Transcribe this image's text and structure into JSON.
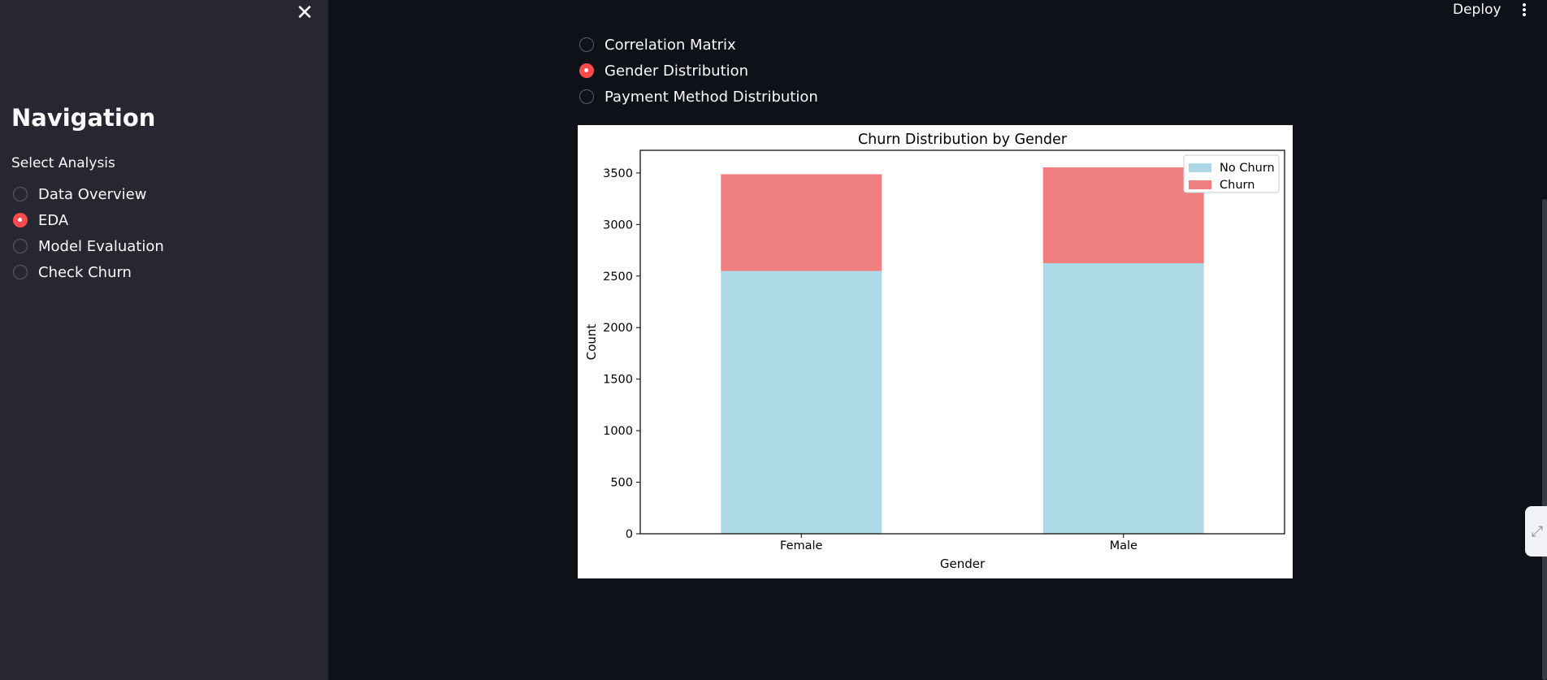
{
  "sidebar": {
    "close_icon": "close-icon",
    "title": "Navigation",
    "select_label": "Select Analysis",
    "options": [
      {
        "label": "Data Overview",
        "checked": false
      },
      {
        "label": "EDA",
        "checked": true
      },
      {
        "label": "Model Evaluation",
        "checked": false
      },
      {
        "label": "Check Churn",
        "checked": false
      }
    ]
  },
  "header": {
    "deploy_label": "Deploy",
    "menu_icon": "kebab-menu-icon"
  },
  "main": {
    "options": [
      {
        "label": "Correlation Matrix",
        "checked": false
      },
      {
        "label": "Gender Distribution",
        "checked": true
      },
      {
        "label": "Payment Method Distribution",
        "checked": false
      }
    ]
  },
  "colors": {
    "app_bg": "#0e1117",
    "sidebar_bg": "#262730",
    "accent": "#ff4b4b",
    "no_churn": "#add8e6",
    "churn": "#f08080"
  },
  "chart_data": {
    "type": "bar",
    "stacked": true,
    "title": "Churn Distribution by Gender",
    "xlabel": "Gender",
    "ylabel": "Count",
    "categories": [
      "Female",
      "Male"
    ],
    "series": [
      {
        "name": "No Churn",
        "values": [
          2549,
          2625
        ],
        "color": "#add8e6"
      },
      {
        "name": "Churn",
        "values": [
          939,
          930
        ],
        "color": "#f08080"
      }
    ],
    "ylim": [
      0,
      3720
    ],
    "yticks": [
      0,
      500,
      1000,
      1500,
      2000,
      2500,
      3000,
      3500
    ],
    "legend_position": "top-right",
    "grid": false
  }
}
